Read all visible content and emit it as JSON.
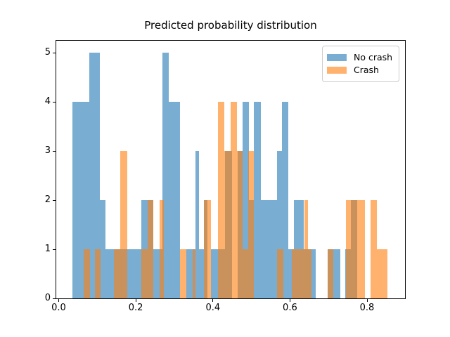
{
  "chart_data": {
    "type": "histogram",
    "title": "Predicted probability distribution",
    "xlabel": "",
    "ylabel": "",
    "xlim": [
      -0.0064,
      0.8985
    ],
    "ylim": [
      0,
      5.243
    ],
    "grid": false,
    "x_ticks": [
      {
        "v": 0.0,
        "label": "0.0"
      },
      {
        "v": 0.2,
        "label": "0.2"
      },
      {
        "v": 0.4,
        "label": "0.4"
      },
      {
        "v": 0.6,
        "label": "0.6"
      },
      {
        "v": 0.8,
        "label": "0.8"
      }
    ],
    "y_ticks": [
      {
        "v": 0,
        "label": "0"
      },
      {
        "v": 1,
        "label": "1"
      },
      {
        "v": 2,
        "label": "2"
      },
      {
        "v": 3,
        "label": "3"
      },
      {
        "v": 4,
        "label": "4"
      },
      {
        "v": 5,
        "label": "5"
      }
    ],
    "legend": {
      "position": "upper right",
      "entries": [
        "No crash",
        "Crash"
      ]
    },
    "series": [
      {
        "name": "No crash",
        "color": "rgba(31,119,180,0.6)",
        "segments": [
          [
            0.035,
            0.079,
            4
          ],
          [
            0.079,
            0.107,
            5
          ],
          [
            0.107,
            0.122,
            2
          ],
          [
            0.122,
            0.215,
            1
          ],
          [
            0.215,
            0.245,
            2
          ],
          [
            0.245,
            0.269,
            1
          ],
          [
            0.269,
            0.285,
            5
          ],
          [
            0.285,
            0.314,
            4
          ],
          [
            0.331,
            0.354,
            1
          ],
          [
            0.354,
            0.364,
            3
          ],
          [
            0.364,
            0.376,
            1
          ],
          [
            0.376,
            0.386,
            2
          ],
          [
            0.395,
            0.431,
            1
          ],
          [
            0.431,
            0.449,
            3
          ],
          [
            0.464,
            0.477,
            3
          ],
          [
            0.477,
            0.493,
            4
          ],
          [
            0.493,
            0.507,
            2
          ],
          [
            0.507,
            0.524,
            4
          ],
          [
            0.524,
            0.566,
            2
          ],
          [
            0.566,
            0.58,
            3
          ],
          [
            0.58,
            0.595,
            4
          ],
          [
            0.595,
            0.61,
            1
          ],
          [
            0.61,
            0.636,
            2
          ],
          [
            0.636,
            0.667,
            1
          ],
          [
            0.697,
            0.73,
            1
          ],
          [
            0.743,
            0.758,
            1
          ],
          [
            0.758,
            0.774,
            2
          ]
        ]
      },
      {
        "name": "Crash",
        "color": "rgba(255,127,14,0.6)",
        "segments": [
          [
            0.065,
            0.081,
            1
          ],
          [
            0.094,
            0.109,
            1
          ],
          [
            0.143,
            0.16,
            1
          ],
          [
            0.16,
            0.178,
            3
          ],
          [
            0.215,
            0.231,
            1
          ],
          [
            0.231,
            0.245,
            2
          ],
          [
            0.262,
            0.272,
            2
          ],
          [
            0.314,
            0.331,
            1
          ],
          [
            0.347,
            0.354,
            1
          ],
          [
            0.376,
            0.395,
            2
          ],
          [
            0.413,
            0.43,
            4
          ],
          [
            0.43,
            0.446,
            3
          ],
          [
            0.446,
            0.463,
            4
          ],
          [
            0.463,
            0.477,
            3
          ],
          [
            0.477,
            0.491,
            1
          ],
          [
            0.491,
            0.507,
            3
          ],
          [
            0.566,
            0.583,
            1
          ],
          [
            0.604,
            0.637,
            1
          ],
          [
            0.637,
            0.647,
            2
          ],
          [
            0.647,
            0.656,
            1
          ],
          [
            0.697,
            0.713,
            1
          ],
          [
            0.745,
            0.794,
            2
          ],
          [
            0.81,
            0.826,
            2
          ],
          [
            0.826,
            0.853,
            1
          ]
        ]
      }
    ]
  }
}
